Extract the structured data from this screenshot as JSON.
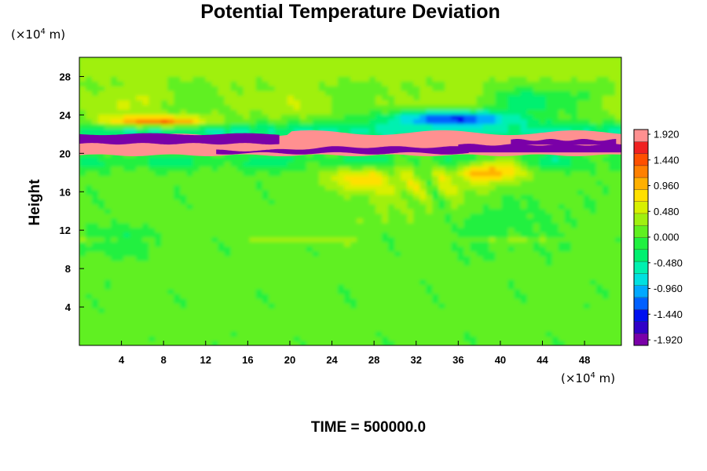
{
  "chart_data": {
    "type": "heatmap",
    "title": "Potential Temperature Deviation",
    "ylabel": "Height",
    "xlabel": "",
    "x_unit": "(×10",
    "y_unit": "(×10",
    "unit_exp": "4",
    "unit_tail": " m)",
    "footer": "TIME = 500000.0",
    "xlim": [
      0,
      51.5
    ],
    "ylim": [
      0,
      30
    ],
    "x_ticks": [
      "4",
      "8",
      "12",
      "16",
      "20",
      "24",
      "28",
      "32",
      "36",
      "40",
      "44",
      "48"
    ],
    "y_ticks": [
      "4",
      "8",
      "12",
      "16",
      "20",
      "24",
      "28"
    ],
    "colorbar": {
      "labels": [
        "1.920",
        "1.440",
        "0.960",
        "0.480",
        "0.000",
        "-0.480",
        "-0.960",
        "-1.440",
        "-1.920"
      ],
      "min": -2.0,
      "max": 2.0,
      "colors": [
        "#7a00a8",
        "#3000c8",
        "#0010f0",
        "#0060ff",
        "#00a8ff",
        "#00e0e0",
        "#00f0b0",
        "#00f070",
        "#20f040",
        "#60f020",
        "#a0f010",
        "#d8f000",
        "#ffe000",
        "#ffb000",
        "#ff8000",
        "#ff5000",
        "#f02020",
        "#ff9090"
      ]
    }
  }
}
